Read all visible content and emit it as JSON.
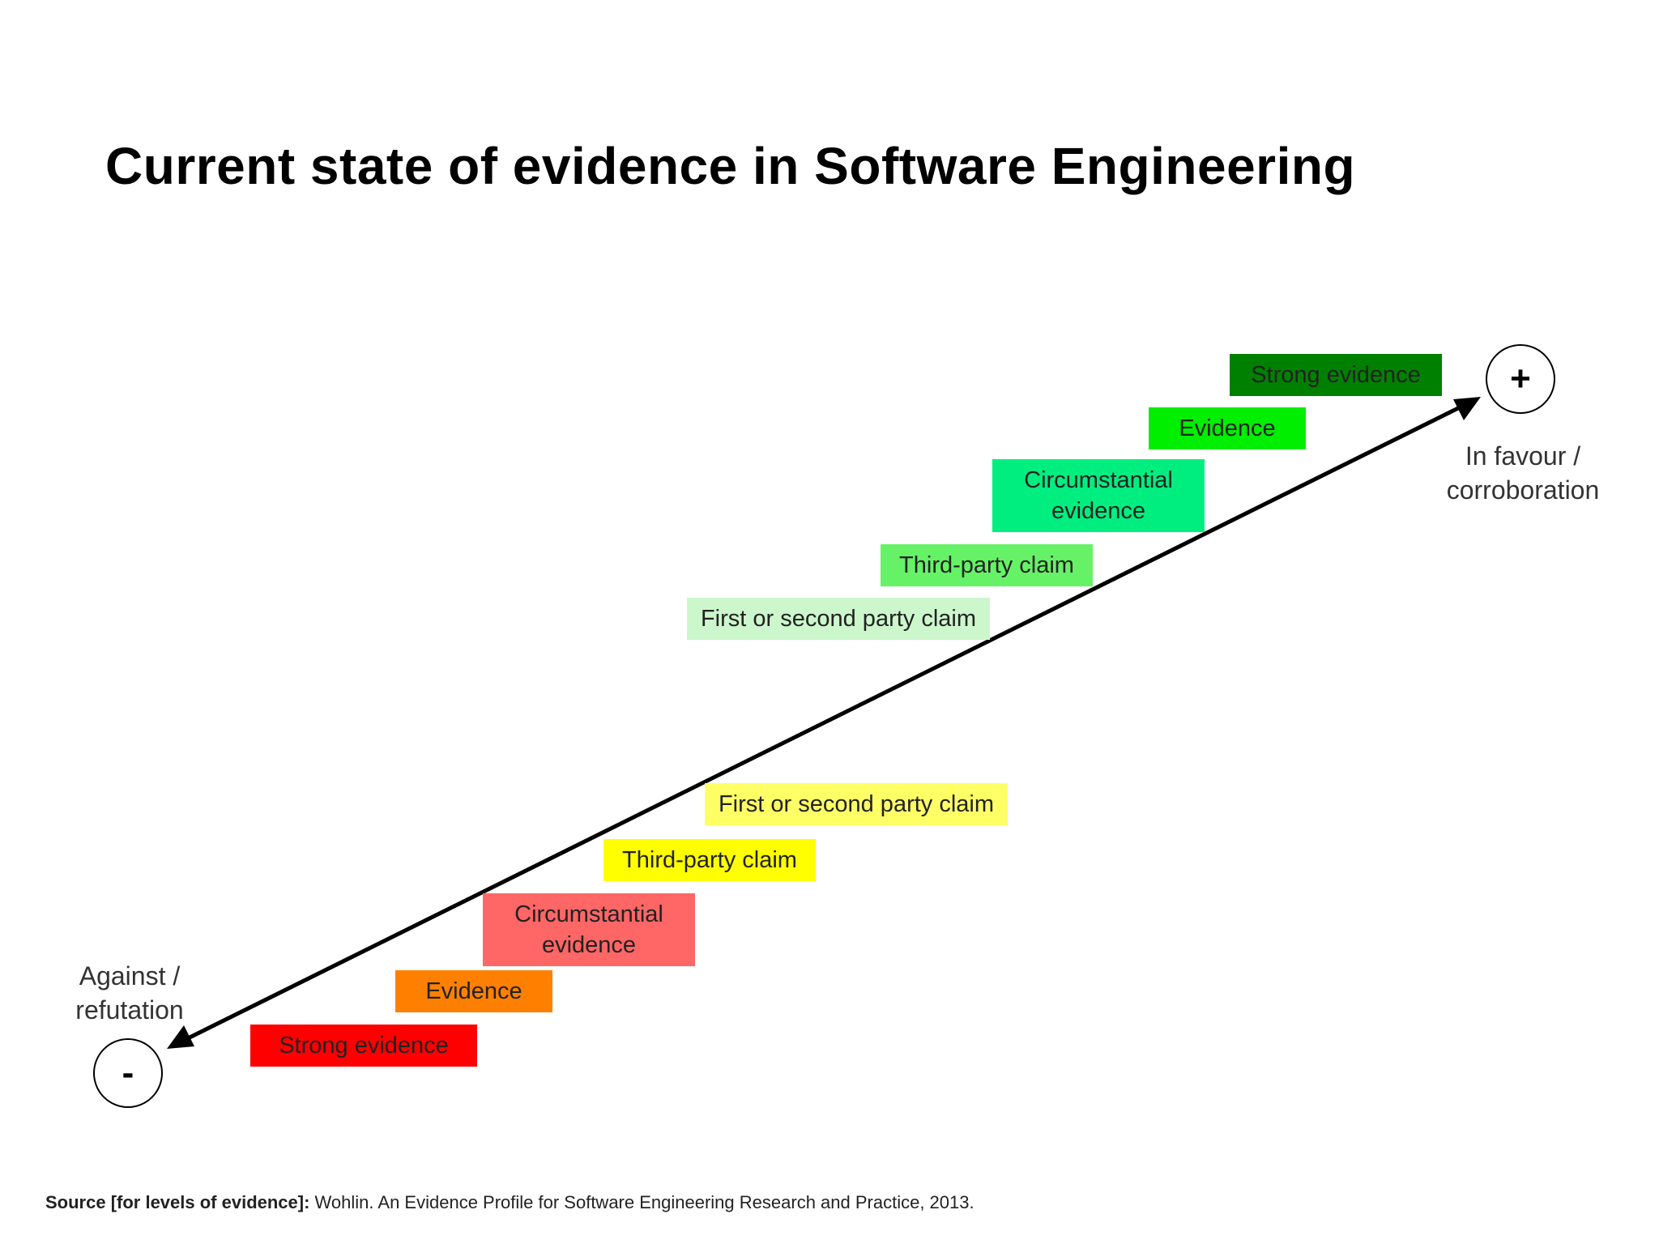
{
  "title": "Current state of evidence in Software Engineering",
  "axis": {
    "positive": {
      "symbol": "+",
      "label_line1": "In favour /",
      "label_line2": "corroboration"
    },
    "negative": {
      "symbol": "-",
      "label_line1": "Against /",
      "label_line2": "refutation"
    }
  },
  "levels_in_favour": [
    {
      "label": "Strong evidence",
      "color": "#008000"
    },
    {
      "label": "Evidence",
      "color": "#00ee00"
    },
    {
      "label": "Circumstantial evidence",
      "color": "#00ee80"
    },
    {
      "label": "Third-party claim",
      "color": "#66f266"
    },
    {
      "label": "First or second party claim",
      "color": "#ccf7cc"
    }
  ],
  "levels_against": [
    {
      "label": "First or second party claim",
      "color": "#ffff66"
    },
    {
      "label": "Third-party claim",
      "color": "#ffff00"
    },
    {
      "label": "Circumstantial evidence",
      "color": "#ff6666"
    },
    {
      "label": "Evidence",
      "color": "#ff8000"
    },
    {
      "label": "Strong evidence",
      "color": "#ff0000"
    }
  ],
  "source": {
    "prefix": "Source [for levels of evidence]:",
    "text": " Wohlin. An Evidence Profile for Software Engineering Research and Practice, 2013."
  }
}
